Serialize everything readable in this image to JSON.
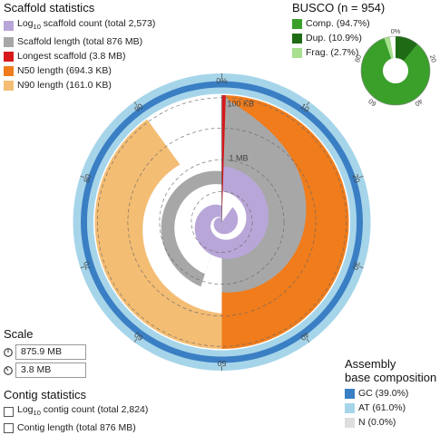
{
  "scaffold_legend": {
    "title": "Scaffold statistics",
    "items": [
      {
        "pre": "Log",
        "sub": "10",
        "post": " scaffold count (total 2,573)",
        "color": "#b9a6d8"
      },
      {
        "pre": "Scaffold length (total 876 MB)",
        "sub": "",
        "post": "",
        "color": "#a7a7a7"
      },
      {
        "pre": "Longest scaffold (3.8 MB)",
        "sub": "",
        "post": "",
        "color": "#d7191c"
      },
      {
        "pre": "N50 length (694.3 KB)",
        "sub": "",
        "post": "",
        "color": "#f07c1c"
      },
      {
        "pre": "N90 length (161.0 KB)",
        "sub": "",
        "post": "",
        "color": "#f4bd74"
      }
    ]
  },
  "busco": {
    "title": "BUSCO (n = 954)",
    "items": [
      {
        "label": "Comp. (94.7%)",
        "color": "#3aa02a"
      },
      {
        "label": "Dup. (10.9%)",
        "color": "#1f6b15"
      },
      {
        "label": "Frag. (2.7%)",
        "color": "#a8e08e"
      }
    ],
    "ticks": [
      "0%",
      "20",
      "40",
      "60",
      "80"
    ],
    "complete_pct": 94.7,
    "duplicated_pct": 10.9,
    "fragmented_pct": 2.7
  },
  "scale": {
    "title": "Scale",
    "full_circle": "875.9 MB",
    "radial": "3.8 MB"
  },
  "contig_legend": {
    "title": "Contig statistics",
    "items": [
      {
        "pre": "Log",
        "sub": "10",
        "post": " contig count (total 2,824)"
      },
      {
        "pre": "Contig length (total 876 MB)",
        "sub": "",
        "post": ""
      }
    ]
  },
  "composition_legend": {
    "title_line1": "Assembly",
    "title_line2": "base composition",
    "items": [
      {
        "label": "GC (39.0%)",
        "color": "#3a7fc4"
      },
      {
        "label": "AT (61.0%)",
        "color": "#a6d5ea"
      },
      {
        "label": "N (0.0%)",
        "color": "#dedede"
      }
    ]
  },
  "chart_data": {
    "type": "snail",
    "outer_ticks": [
      "0%",
      "10",
      "20",
      "30",
      "40",
      "50",
      "60",
      "70",
      "80",
      "90"
    ],
    "radial_labels": [
      "100 KB",
      "1 MB"
    ],
    "total_length_mb": 876,
    "scaffold_count": 2573,
    "contig_count": 2824,
    "longest_scaffold_mb": 3.8,
    "n50_kb": 694.3,
    "n90_kb": 161.0,
    "n50_fraction": 0.5,
    "n90_fraction": 0.9,
    "gc_pct": 39.0,
    "at_pct": 61.0,
    "n_pct": 0.0,
    "colors": {
      "scaffold_length": "#a7a7a7",
      "longest": "#d7191c",
      "n50": "#f07c1c",
      "n90": "#f4bd74",
      "count": "#b9a6d8",
      "gc": "#3a7fc4",
      "at": "#a6d5ea"
    }
  }
}
